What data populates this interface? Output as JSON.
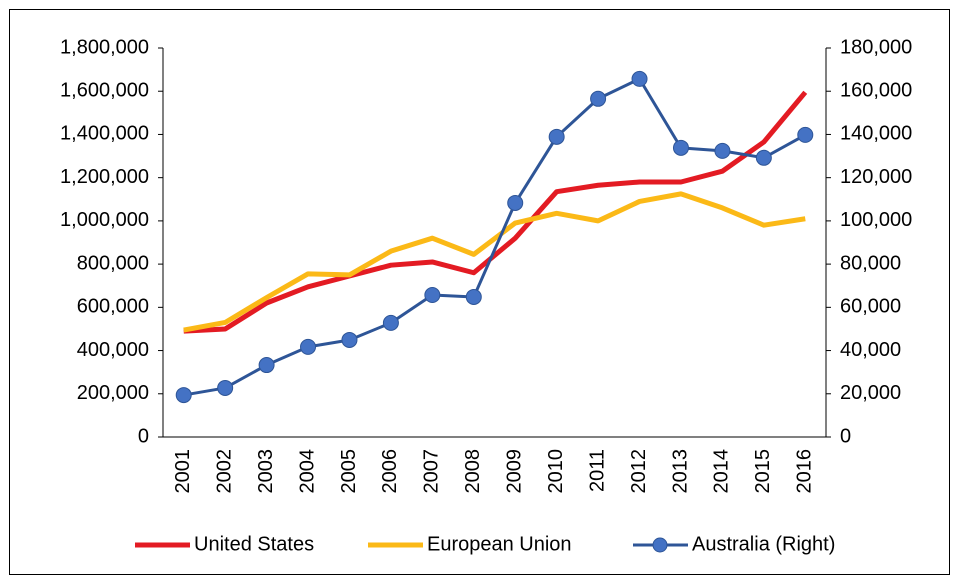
{
  "chart_data": {
    "type": "line",
    "categories": [
      "2001",
      "2002",
      "2003",
      "2004",
      "2005",
      "2006",
      "2007",
      "2008",
      "2009",
      "2010",
      "2011",
      "2012",
      "2013",
      "2014",
      "2015",
      "2016"
    ],
    "series": [
      {
        "name": "United States",
        "color": "#e31b23",
        "values": [
          490000,
          500000,
          620000,
          695000,
          745000,
          795000,
          810000,
          760000,
          920000,
          1135000,
          1165000,
          1180000,
          1180000,
          1230000,
          1365000,
          1595000
        ]
      },
      {
        "name": "European Union",
        "color": "#fbb917",
        "values": [
          495000,
          530000,
          645000,
          755000,
          750000,
          860000,
          920000,
          845000,
          990000,
          1035000,
          1000000,
          1090000,
          1125000,
          1060000,
          980000,
          1010000
        ]
      },
      {
        "name": "Australia (Right)",
        "color": "#2e5597",
        "axis": "y2",
        "marker": true,
        "values": [
          19400,
          22700,
          33300,
          41700,
          44900,
          52800,
          65700,
          64800,
          108300,
          138900,
          156500,
          165700,
          133800,
          132400,
          129200,
          139800
        ]
      }
    ],
    "ylim": [
      0,
      1800000
    ],
    "yticks": [
      0,
      {
        "value": 200000,
        "label": "200,000"
      },
      {
        "value": 400000,
        "label": "400,000"
      },
      {
        "value": 600000,
        "label": "600,000"
      },
      {
        "value": 800000,
        "label": "800,000"
      },
      {
        "value": 1000000,
        "label": "1,000,000"
      },
      {
        "value": 1200000,
        "label": "1,200,000"
      },
      {
        "value": 1400000,
        "label": "1,400,000"
      },
      {
        "value": 1600000,
        "label": "1,600,000"
      },
      {
        "value": 1800000,
        "label": "1,800,000"
      }
    ],
    "y2lim": [
      0,
      180000
    ],
    "y2ticks": [
      0,
      {
        "value": 20000,
        "label": "20,000"
      },
      {
        "value": 40000,
        "label": "40,000"
      },
      {
        "value": 60000,
        "label": "60,000"
      },
      {
        "value": 80000,
        "label": "80,000"
      },
      {
        "value": 100000,
        "label": "100,000"
      },
      {
        "value": 120000,
        "label": "120,000"
      },
      {
        "value": 140000,
        "label": "140,000"
      },
      {
        "value": 160000,
        "label": "160,000"
      },
      {
        "value": 180000,
        "label": "180,000"
      }
    ],
    "grid": false,
    "legend": "bottom"
  }
}
